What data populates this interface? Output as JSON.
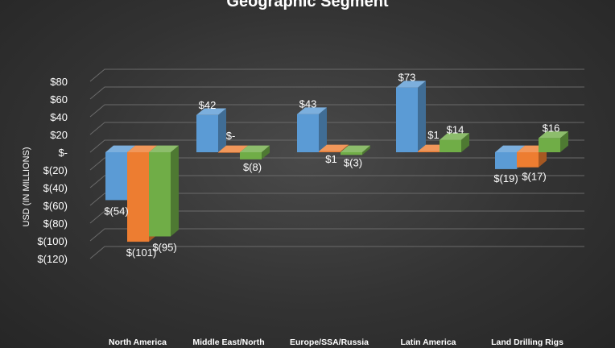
{
  "chart_data": {
    "type": "bar",
    "title": "Geographic Segment",
    "ylabel": "USD (IN MILLIONS)",
    "xlabel": "",
    "categories": [
      "North America",
      "Middle East/North",
      "Europe/SSA/Russia",
      "Latin America",
      "Land Drilling Rigs"
    ],
    "series": [
      {
        "color": "#5b9bd5",
        "values": [
          -54,
          42,
          43,
          73,
          -19
        ]
      },
      {
        "color": "#ed7d31",
        "values": [
          -101,
          0,
          1,
          1,
          -17
        ]
      },
      {
        "color": "#70ad47",
        "values": [
          -95,
          -8,
          -3,
          14,
          16
        ]
      }
    ],
    "data_labels": [
      [
        "$(54)",
        "$42",
        "$43",
        "$73",
        "$(19)"
      ],
      [
        "$(101)",
        "$-",
        "$1",
        "$1",
        "$(17)"
      ],
      [
        "$(95)",
        "$(8)",
        "$(3)",
        "$14",
        "$16"
      ]
    ],
    "yticks": [
      80,
      60,
      40,
      20,
      0,
      -20,
      -40,
      -60,
      -80,
      -100,
      -120
    ],
    "ytick_labels": [
      "$80",
      "$60",
      "$40",
      "$20",
      "$-",
      "$(20)",
      "$(40)",
      "$(60)",
      "$(80)",
      "$(100)",
      "$(120)"
    ],
    "ylim": [
      -120,
      80
    ],
    "grid": true,
    "legend": "none"
  }
}
